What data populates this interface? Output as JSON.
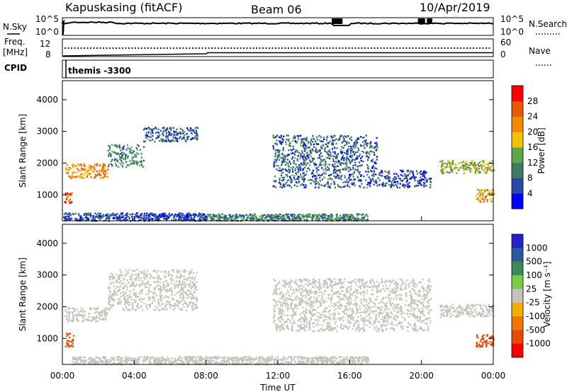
{
  "header": {
    "station": "Kapuskasing (fitACF)",
    "beam": "Beam 06",
    "date": "10/Apr/2019"
  },
  "noise_panel": {
    "left_label": "N.Sky",
    "right_label": "N.Search",
    "left_ticks": [
      "10^5",
      "10^0"
    ],
    "right_ticks": [
      "10^5",
      "10^0"
    ]
  },
  "freq_panel": {
    "left_label_1": "Freq.",
    "left_label_2": "[MHz]",
    "right_label": "Nave",
    "left_ticks": [
      "12",
      "8"
    ],
    "right_ticks": [
      "60",
      "0"
    ]
  },
  "cpid_panel": {
    "label": "CPID",
    "text": "themis -3300"
  },
  "colors": {
    "power_scale": [
      "#0000ff",
      "#2a48a8",
      "#3d7a62",
      "#5aa84a",
      "#f5c000",
      "#f08a00",
      "#e85a00",
      "#ff0000"
    ],
    "velocity_scale": [
      "#2222cc",
      "#2a5a9a",
      "#3d8a55",
      "#7acc44",
      "#c4c4bc",
      "#f0b000",
      "#f07800",
      "#e84a00",
      "#ff0000"
    ],
    "ground_scatter": "#c4c4bc"
  },
  "chart_data": [
    {
      "type": "heatmap",
      "name": "power",
      "ylabel": "Slant Range [km]",
      "y_ticks": [
        "1000",
        "2000",
        "3000",
        "4000"
      ],
      "ylim": [
        180,
        4600
      ],
      "xlim_hours": [
        0,
        24
      ],
      "colorbar": {
        "label": "Power [dB]",
        "ticks": [
          "4",
          "8",
          "12",
          "16",
          "20",
          "24",
          "28"
        ],
        "range": [
          0,
          32
        ]
      },
      "echo_regions": [
        {
          "t_start": 0.05,
          "t_end": 8.0,
          "r_start": 200,
          "r_end": 450,
          "value": 6
        },
        {
          "t_start": 8.0,
          "t_end": 17.0,
          "r_start": 200,
          "r_end": 420,
          "value": 10
        },
        {
          "t_start": 0.1,
          "t_end": 2.5,
          "r_start": 1550,
          "r_end": 2000,
          "value": 22
        },
        {
          "t_start": 2.5,
          "t_end": 4.5,
          "r_start": 1900,
          "r_end": 2600,
          "value": 10
        },
        {
          "t_start": 4.5,
          "t_end": 7.5,
          "r_start": 2700,
          "r_end": 3150,
          "value": 7
        },
        {
          "t_start": 11.7,
          "t_end": 17.5,
          "r_start": 1250,
          "r_end": 2900,
          "value": 8
        },
        {
          "t_start": 17.5,
          "t_end": 20.5,
          "r_start": 1250,
          "r_end": 1800,
          "value": 6
        },
        {
          "t_start": 21.0,
          "t_end": 24.0,
          "r_start": 1700,
          "r_end": 2100,
          "value": 16
        },
        {
          "t_start": 23.0,
          "t_end": 24.0,
          "r_start": 800,
          "r_end": 1200,
          "value": 20
        },
        {
          "t_start": 0.1,
          "t_end": 0.5,
          "r_start": 750,
          "r_end": 1100,
          "value": 26
        }
      ]
    },
    {
      "type": "heatmap",
      "name": "velocity",
      "ylabel": "Slant Range [km]",
      "y_ticks": [
        "1000",
        "2000",
        "3000",
        "4000"
      ],
      "ylim": [
        180,
        4600
      ],
      "xlim_hours": [
        0,
        24
      ],
      "colorbar": {
        "label": "Velocity [m s⁻¹]",
        "ticks": [
          "1000",
          "500",
          "100",
          "25",
          "-25",
          "-100",
          "-500",
          "-1000"
        ]
      },
      "echo_regions": [
        {
          "t_start": 0.1,
          "t_end": 2.5,
          "r_start": 1550,
          "r_end": 2000,
          "value": "ground"
        },
        {
          "t_start": 2.5,
          "t_end": 7.5,
          "r_start": 1900,
          "r_end": 3200,
          "value": "ground"
        },
        {
          "t_start": 11.7,
          "t_end": 20.5,
          "r_start": 1250,
          "r_end": 2900,
          "value": "ground"
        },
        {
          "t_start": 21.0,
          "t_end": 24.0,
          "r_start": 1700,
          "r_end": 2100,
          "value": "ground"
        },
        {
          "t_start": 0.1,
          "t_end": 0.6,
          "r_start": 750,
          "r_end": 1200,
          "value": -300
        },
        {
          "t_start": 23.0,
          "t_end": 24.0,
          "r_start": 750,
          "r_end": 1150,
          "value": -300
        },
        {
          "t_start": 0.5,
          "t_end": 17.0,
          "r_start": 200,
          "r_end": 450,
          "value": "ground"
        }
      ]
    }
  ],
  "x_axis": {
    "label": "Time UT",
    "ticks": [
      "00:00",
      "04:00",
      "08:00",
      "12:00",
      "16:00",
      "20:00",
      "00:00"
    ]
  }
}
